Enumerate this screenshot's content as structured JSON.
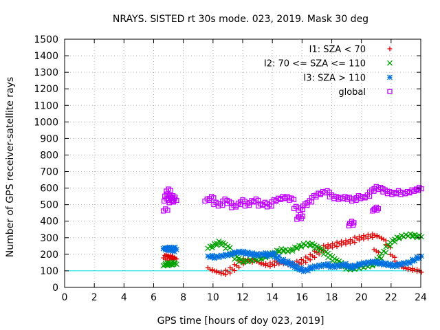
{
  "chart_data": {
    "type": "scatter",
    "title": "NRAYS. SISTED rt 30s mode. 023, 2019. Mask 30 deg",
    "xlabel": "GPS time [hours of doy 023, 2019]",
    "ylabel": "Number of GPS receiver-satellite rays",
    "xlim": [
      0,
      24
    ],
    "ylim": [
      0,
      1500
    ],
    "xticks": [
      "0",
      "2",
      "4",
      "6",
      "8",
      "10",
      "12",
      "14",
      "16",
      "18",
      "20",
      "22",
      "24"
    ],
    "yticks": [
      "0",
      "100",
      "200",
      "300",
      "400",
      "500",
      "600",
      "700",
      "800",
      "900",
      "1000",
      "1100",
      "1200",
      "1300",
      "1400",
      "1500"
    ],
    "grid": true,
    "legend_position": "top-right",
    "reference_line": {
      "y": 100,
      "color": "#00e0e0"
    },
    "series": [
      {
        "name": "I1: SZA < 70",
        "marker": "+",
        "color": "#e00000",
        "points": [
          [
            6.8,
            170
          ],
          [
            6.9,
            185
          ],
          [
            7.0,
            190
          ],
          [
            7.1,
            180
          ],
          [
            7.2,
            175
          ],
          [
            7.3,
            185
          ],
          [
            7.4,
            180
          ],
          [
            9.8,
            110
          ],
          [
            10.1,
            100
          ],
          [
            10.4,
            90
          ],
          [
            10.7,
            85
          ],
          [
            11.0,
            95
          ],
          [
            11.3,
            110
          ],
          [
            11.6,
            130
          ],
          [
            11.9,
            150
          ],
          [
            12.2,
            165
          ],
          [
            12.5,
            160
          ],
          [
            12.8,
            165
          ],
          [
            13.1,
            150
          ],
          [
            13.4,
            140
          ],
          [
            13.7,
            135
          ],
          [
            14.0,
            140
          ],
          [
            14.3,
            150
          ],
          [
            14.6,
            150
          ],
          [
            14.9,
            145
          ],
          [
            15.2,
            150
          ],
          [
            15.5,
            140
          ],
          [
            15.8,
            150
          ],
          [
            16.1,
            160
          ],
          [
            16.4,
            175
          ],
          [
            16.7,
            190
          ],
          [
            17.0,
            210
          ],
          [
            17.3,
            230
          ],
          [
            17.6,
            245
          ],
          [
            17.9,
            250
          ],
          [
            18.2,
            255
          ],
          [
            18.5,
            265
          ],
          [
            18.8,
            270
          ],
          [
            19.1,
            275
          ],
          [
            19.4,
            280
          ],
          [
            19.7,
            295
          ],
          [
            20.0,
            300
          ],
          [
            20.3,
            305
          ],
          [
            20.6,
            310
          ],
          [
            20.9,
            315
          ],
          [
            21.2,
            305
          ],
          [
            21.5,
            290
          ],
          [
            21.8,
            250
          ],
          [
            22.1,
            190
          ],
          [
            22.4,
            150
          ],
          [
            22.7,
            125
          ],
          [
            23.0,
            115
          ],
          [
            23.3,
            110
          ],
          [
            23.6,
            105
          ],
          [
            23.9,
            100
          ],
          [
            21.0,
            220
          ]
        ]
      },
      {
        "name": "I2: 70 <= SZA <= 110",
        "marker": "x",
        "color": "#00a000",
        "points": [
          [
            6.8,
            135
          ],
          [
            6.9,
            140
          ],
          [
            7.0,
            140
          ],
          [
            7.1,
            135
          ],
          [
            7.2,
            140
          ],
          [
            7.3,
            145
          ],
          [
            7.4,
            140
          ],
          [
            9.8,
            240
          ],
          [
            10.1,
            255
          ],
          [
            10.4,
            270
          ],
          [
            10.7,
            260
          ],
          [
            11.0,
            240
          ],
          [
            11.3,
            200
          ],
          [
            11.6,
            175
          ],
          [
            11.9,
            160
          ],
          [
            12.2,
            155
          ],
          [
            12.5,
            160
          ],
          [
            12.8,
            165
          ],
          [
            13.1,
            170
          ],
          [
            13.4,
            180
          ],
          [
            13.7,
            190
          ],
          [
            14.0,
            200
          ],
          [
            14.3,
            215
          ],
          [
            14.6,
            225
          ],
          [
            14.9,
            220
          ],
          [
            15.2,
            220
          ],
          [
            15.5,
            235
          ],
          [
            15.8,
            245
          ],
          [
            16.1,
            255
          ],
          [
            16.4,
            260
          ],
          [
            16.7,
            255
          ],
          [
            17.0,
            240
          ],
          [
            17.3,
            225
          ],
          [
            17.6,
            205
          ],
          [
            17.9,
            185
          ],
          [
            18.2,
            165
          ],
          [
            18.5,
            150
          ],
          [
            18.8,
            130
          ],
          [
            19.1,
            115
          ],
          [
            19.4,
            110
          ],
          [
            19.7,
            115
          ],
          [
            20.0,
            120
          ],
          [
            20.3,
            125
          ],
          [
            20.6,
            130
          ],
          [
            20.9,
            140
          ],
          [
            21.2,
            175
          ],
          [
            21.5,
            210
          ],
          [
            21.8,
            250
          ],
          [
            22.1,
            275
          ],
          [
            22.4,
            295
          ],
          [
            22.7,
            305
          ],
          [
            23.0,
            310
          ],
          [
            23.3,
            315
          ],
          [
            23.6,
            310
          ],
          [
            23.9,
            305
          ]
        ]
      },
      {
        "name": "I3: SZA > 110",
        "marker": "*",
        "color": "#0070e0",
        "points": [
          [
            6.8,
            230
          ],
          [
            6.9,
            235
          ],
          [
            7.0,
            230
          ],
          [
            7.1,
            225
          ],
          [
            7.2,
            230
          ],
          [
            7.3,
            235
          ],
          [
            7.4,
            220
          ],
          [
            9.8,
            185
          ],
          [
            10.1,
            180
          ],
          [
            10.4,
            185
          ],
          [
            10.7,
            190
          ],
          [
            11.0,
            195
          ],
          [
            11.3,
            200
          ],
          [
            11.6,
            210
          ],
          [
            11.9,
            210
          ],
          [
            12.2,
            205
          ],
          [
            12.5,
            200
          ],
          [
            12.8,
            195
          ],
          [
            13.1,
            195
          ],
          [
            13.4,
            200
          ],
          [
            13.7,
            190
          ],
          [
            14.0,
            200
          ],
          [
            14.3,
            180
          ],
          [
            14.6,
            160
          ],
          [
            14.9,
            150
          ],
          [
            15.2,
            140
          ],
          [
            15.5,
            125
          ],
          [
            15.8,
            110
          ],
          [
            16.1,
            100
          ],
          [
            16.4,
            105
          ],
          [
            16.7,
            120
          ],
          [
            17.0,
            125
          ],
          [
            17.3,
            130
          ],
          [
            17.6,
            135
          ],
          [
            17.9,
            125
          ],
          [
            18.2,
            125
          ],
          [
            18.5,
            130
          ],
          [
            18.8,
            135
          ],
          [
            19.1,
            125
          ],
          [
            19.4,
            120
          ],
          [
            19.7,
            130
          ],
          [
            20.0,
            140
          ],
          [
            20.3,
            145
          ],
          [
            20.6,
            150
          ],
          [
            20.9,
            150
          ],
          [
            21.2,
            145
          ],
          [
            21.5,
            140
          ],
          [
            21.8,
            135
          ],
          [
            22.1,
            130
          ],
          [
            22.4,
            130
          ],
          [
            22.7,
            140
          ],
          [
            23.0,
            145
          ],
          [
            23.3,
            150
          ],
          [
            23.6,
            165
          ],
          [
            23.9,
            180
          ]
        ]
      },
      {
        "name": "global",
        "marker": "square",
        "color": "#c000ff",
        "points": [
          [
            6.8,
            470
          ],
          [
            6.85,
            530
          ],
          [
            6.9,
            560
          ],
          [
            7.0,
            590
          ],
          [
            7.1,
            545
          ],
          [
            7.2,
            520
          ],
          [
            7.3,
            550
          ],
          [
            7.4,
            530
          ],
          [
            9.6,
            530
          ],
          [
            9.9,
            545
          ],
          [
            10.2,
            510
          ],
          [
            10.5,
            500
          ],
          [
            10.8,
            530
          ],
          [
            11.1,
            515
          ],
          [
            11.4,
            490
          ],
          [
            11.7,
            505
          ],
          [
            12.0,
            525
          ],
          [
            12.3,
            500
          ],
          [
            12.6,
            520
          ],
          [
            12.9,
            530
          ],
          [
            13.2,
            500
          ],
          [
            13.5,
            510
          ],
          [
            13.8,
            495
          ],
          [
            14.1,
            525
          ],
          [
            14.4,
            535
          ],
          [
            14.7,
            545
          ],
          [
            15.0,
            545
          ],
          [
            15.3,
            535
          ],
          [
            15.6,
            485
          ],
          [
            15.9,
            475
          ],
          [
            16.2,
            500
          ],
          [
            16.5,
            520
          ],
          [
            16.8,
            550
          ],
          [
            17.1,
            565
          ],
          [
            17.4,
            575
          ],
          [
            17.7,
            580
          ],
          [
            18.0,
            555
          ],
          [
            18.3,
            545
          ],
          [
            18.6,
            540
          ],
          [
            18.9,
            545
          ],
          [
            19.2,
            540
          ],
          [
            19.5,
            530
          ],
          [
            19.8,
            550
          ],
          [
            20.1,
            545
          ],
          [
            20.4,
            555
          ],
          [
            20.7,
            585
          ],
          [
            21.0,
            605
          ],
          [
            21.3,
            600
          ],
          [
            21.6,
            585
          ],
          [
            21.9,
            575
          ],
          [
            22.2,
            570
          ],
          [
            22.5,
            580
          ],
          [
            22.8,
            570
          ],
          [
            23.1,
            575
          ],
          [
            23.4,
            585
          ],
          [
            23.7,
            590
          ],
          [
            23.9,
            600
          ],
          [
            15.8,
            420
          ],
          [
            15.9,
            435
          ],
          [
            19.3,
            380
          ],
          [
            19.35,
            395
          ],
          [
            20.9,
            470
          ],
          [
            21.0,
            480
          ]
        ]
      }
    ]
  }
}
